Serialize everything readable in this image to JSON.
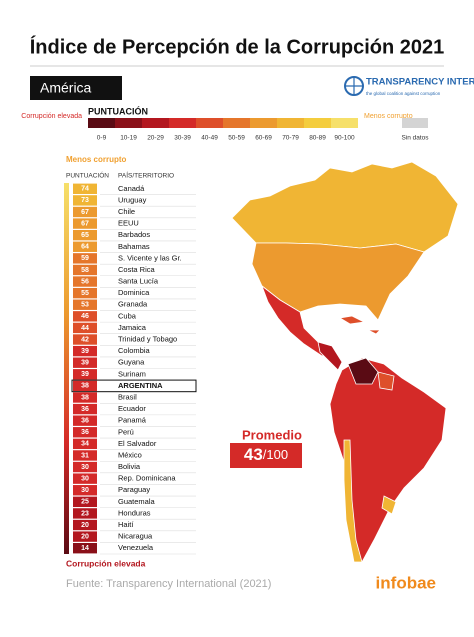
{
  "title": "Índice de Percepción de la Corrupción 2021",
  "region": "América",
  "logo": {
    "name": "TRANSPARENCY INTERNATIONAL",
    "tagline": "the global coalition against corruption"
  },
  "legend": {
    "title": "PUNTUACIÓN",
    "low_label": "Corrupción elevada",
    "high_label": "Menos corrupto",
    "no_data": "Sin datos",
    "no_data_color": "#d4d4d4",
    "ranges": [
      {
        "label": "0-9",
        "color": "#5a0b14"
      },
      {
        "label": "10-19",
        "color": "#8a1019"
      },
      {
        "label": "20-29",
        "color": "#b3171f"
      },
      {
        "label": "30-39",
        "color": "#d42a28"
      },
      {
        "label": "40-49",
        "color": "#de4f2a"
      },
      {
        "label": "50-59",
        "color": "#e5762b"
      },
      {
        "label": "60-69",
        "color": "#ec9a2f"
      },
      {
        "label": "70-79",
        "color": "#f0b534"
      },
      {
        "label": "80-89",
        "color": "#f4cd3e"
      },
      {
        "label": "90-100",
        "color": "#f6e06a"
      }
    ]
  },
  "table": {
    "top_label": "Menos corrupto",
    "bottom_label": "Corrupción elevada",
    "columns": [
      "PUNTUACIÓN",
      "PAÍS/TERRITORIO"
    ],
    "rows": [
      {
        "score": 74,
        "country": "Canadá"
      },
      {
        "score": 73,
        "country": "Uruguay"
      },
      {
        "score": 67,
        "country": "Chile"
      },
      {
        "score": 67,
        "country": "EEUU"
      },
      {
        "score": 65,
        "country": "Barbados"
      },
      {
        "score": 64,
        "country": "Bahamas"
      },
      {
        "score": 59,
        "country": "S. Vicente y las Gr."
      },
      {
        "score": 58,
        "country": "Costa Rica"
      },
      {
        "score": 56,
        "country": "Santa Lucía"
      },
      {
        "score": 55,
        "country": "Dominica"
      },
      {
        "score": 53,
        "country": "Granada"
      },
      {
        "score": 46,
        "country": "Cuba"
      },
      {
        "score": 44,
        "country": "Jamaica"
      },
      {
        "score": 42,
        "country": "Trinidad y Tobago"
      },
      {
        "score": 39,
        "country": "Colombia"
      },
      {
        "score": 39,
        "country": "Guyana"
      },
      {
        "score": 39,
        "country": "Surinam"
      },
      {
        "score": 38,
        "country": "ARGENTINA",
        "highlight": true
      },
      {
        "score": 38,
        "country": "Brasil"
      },
      {
        "score": 36,
        "country": "Ecuador"
      },
      {
        "score": 36,
        "country": "Panamá"
      },
      {
        "score": 36,
        "country": "Perú"
      },
      {
        "score": 34,
        "country": "El Salvador"
      },
      {
        "score": 31,
        "country": "México"
      },
      {
        "score": 30,
        "country": "Bolivia"
      },
      {
        "score": 30,
        "country": "Rep. Dominicana"
      },
      {
        "score": 30,
        "country": "Paraguay"
      },
      {
        "score": 25,
        "country": "Guatemala"
      },
      {
        "score": 23,
        "country": "Honduras"
      },
      {
        "score": 20,
        "country": "Haití"
      },
      {
        "score": 20,
        "country": "Nicaragua"
      },
      {
        "score": 14,
        "country": "Venezuela"
      }
    ]
  },
  "average": {
    "label": "Promedio",
    "score": "43",
    "scale": "/100"
  },
  "source": "Fuente: Transparency International (2021)",
  "brand": "infobae"
}
